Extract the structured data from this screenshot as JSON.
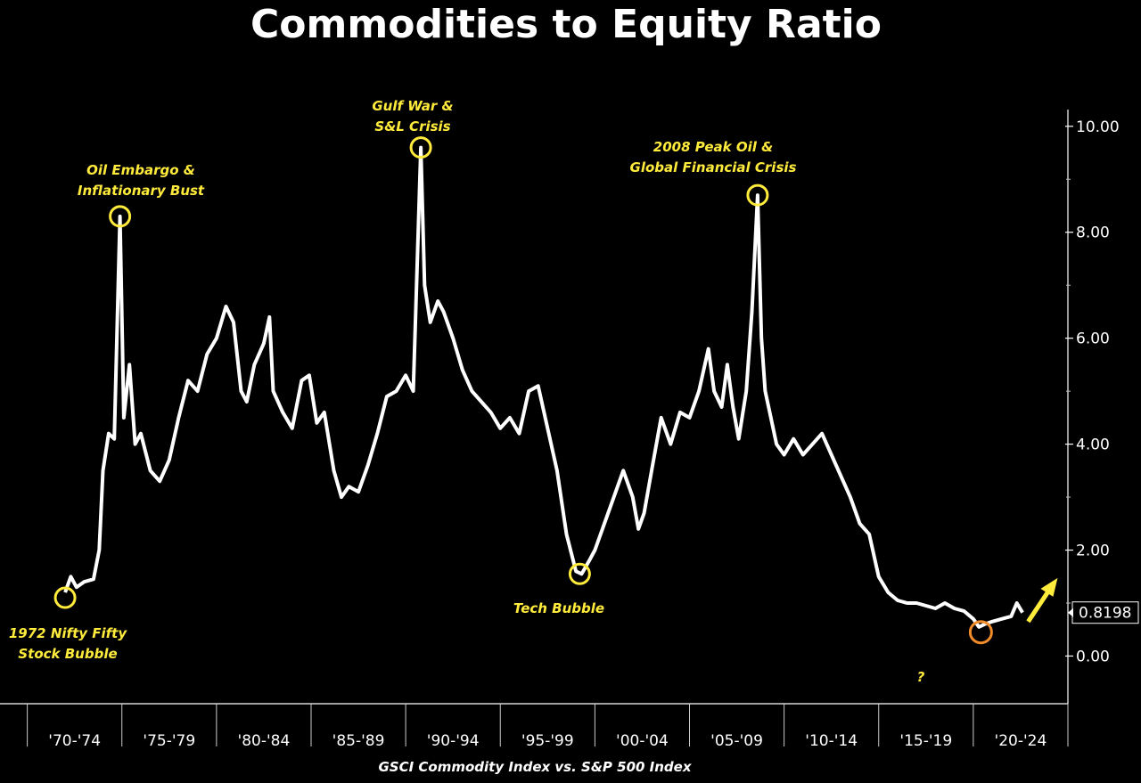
{
  "chart_data": {
    "type": "line",
    "title": "Commodities to Equity Ratio",
    "xlabel": "GSCI Commodity Index vs. S&P 500 Index",
    "ylabel": "",
    "categories": [
      "'70-'74",
      "'75-'79",
      "'80-'84",
      "'85-'89",
      "'90-'94",
      "'95-'99",
      "'00-'04",
      "'05-'09",
      "'10-'14",
      "'15-'19",
      "'20-'24"
    ],
    "yticks": [
      "0.00",
      "2.00",
      "4.00",
      "6.00",
      "8.00",
      "10.00"
    ],
    "ylim": [
      -0.9,
      10.4
    ],
    "xlim": [
      1969.5,
      2025
    ],
    "grid": false,
    "last_value_label": "0.8198",
    "accent_color": "#ffeb3b",
    "marker_colors": {
      "peak": "#ffeb3b",
      "current_low": "#f28c28"
    },
    "series": [
      {
        "values": [
          [
            1972.0,
            1.2
          ],
          [
            1972.3,
            1.5
          ],
          [
            1972.6,
            1.3
          ],
          [
            1973.0,
            1.4
          ],
          [
            1973.5,
            1.45
          ],
          [
            1973.8,
            2.0
          ],
          [
            1974.0,
            3.5
          ],
          [
            1974.3,
            4.2
          ],
          [
            1974.6,
            4.1
          ],
          [
            1974.9,
            8.3
          ],
          [
            1975.1,
            4.5
          ],
          [
            1975.4,
            5.5
          ],
          [
            1975.7,
            4.0
          ],
          [
            1976.0,
            4.2
          ],
          [
            1976.5,
            3.5
          ],
          [
            1977.0,
            3.3
          ],
          [
            1977.5,
            3.7
          ],
          [
            1978.0,
            4.5
          ],
          [
            1978.5,
            5.2
          ],
          [
            1979.0,
            5.0
          ],
          [
            1979.5,
            5.7
          ],
          [
            1980.0,
            6.0
          ],
          [
            1980.5,
            6.6
          ],
          [
            1980.9,
            6.3
          ],
          [
            1981.3,
            5.0
          ],
          [
            1981.6,
            4.8
          ],
          [
            1982.0,
            5.5
          ],
          [
            1982.5,
            5.9
          ],
          [
            1982.8,
            6.4
          ],
          [
            1983.0,
            5.0
          ],
          [
            1983.5,
            4.6
          ],
          [
            1984.0,
            4.3
          ],
          [
            1984.5,
            5.2
          ],
          [
            1984.9,
            5.3
          ],
          [
            1985.3,
            4.4
          ],
          [
            1985.7,
            4.6
          ],
          [
            1986.2,
            3.5
          ],
          [
            1986.6,
            3.0
          ],
          [
            1987.0,
            3.2
          ],
          [
            1987.5,
            3.1
          ],
          [
            1988.0,
            3.6
          ],
          [
            1988.5,
            4.2
          ],
          [
            1989.0,
            4.9
          ],
          [
            1989.5,
            5.0
          ],
          [
            1990.0,
            5.3
          ],
          [
            1990.4,
            5.0
          ],
          [
            1990.8,
            9.6
          ],
          [
            1991.0,
            7.0
          ],
          [
            1991.3,
            6.3
          ],
          [
            1991.7,
            6.7
          ],
          [
            1992.0,
            6.5
          ],
          [
            1992.5,
            6.0
          ],
          [
            1993.0,
            5.4
          ],
          [
            1993.5,
            5.0
          ],
          [
            1994.0,
            4.8
          ],
          [
            1994.5,
            4.6
          ],
          [
            1995.0,
            4.3
          ],
          [
            1995.5,
            4.5
          ],
          [
            1996.0,
            4.2
          ],
          [
            1996.5,
            5.0
          ],
          [
            1997.0,
            5.1
          ],
          [
            1997.5,
            4.3
          ],
          [
            1998.0,
            3.5
          ],
          [
            1998.5,
            2.3
          ],
          [
            1999.0,
            1.6
          ],
          [
            1999.3,
            1.55
          ],
          [
            1999.7,
            1.8
          ],
          [
            2000.0,
            2.0
          ],
          [
            2000.5,
            2.5
          ],
          [
            2001.0,
            3.0
          ],
          [
            2001.5,
            3.5
          ],
          [
            2002.0,
            3.0
          ],
          [
            2002.3,
            2.4
          ],
          [
            2002.6,
            2.7
          ],
          [
            2003.0,
            3.5
          ],
          [
            2003.5,
            4.5
          ],
          [
            2004.0,
            4.0
          ],
          [
            2004.5,
            4.6
          ],
          [
            2005.0,
            4.5
          ],
          [
            2005.5,
            5.0
          ],
          [
            2006.0,
            5.8
          ],
          [
            2006.3,
            5.0
          ],
          [
            2006.7,
            4.7
          ],
          [
            2007.0,
            5.5
          ],
          [
            2007.3,
            4.7
          ],
          [
            2007.6,
            4.1
          ],
          [
            2008.0,
            5.0
          ],
          [
            2008.3,
            6.5
          ],
          [
            2008.6,
            8.7
          ],
          [
            2008.8,
            6.0
          ],
          [
            2009.0,
            5.0
          ],
          [
            2009.3,
            4.5
          ],
          [
            2009.6,
            4.0
          ],
          [
            2010.0,
            3.8
          ],
          [
            2010.5,
            4.1
          ],
          [
            2011.0,
            3.8
          ],
          [
            2011.5,
            4.0
          ],
          [
            2012.0,
            4.2
          ],
          [
            2012.5,
            3.8
          ],
          [
            2013.0,
            3.4
          ],
          [
            2013.5,
            3.0
          ],
          [
            2014.0,
            2.5
          ],
          [
            2014.5,
            2.3
          ],
          [
            2015.0,
            1.5
          ],
          [
            2015.5,
            1.2
          ],
          [
            2016.0,
            1.05
          ],
          [
            2016.5,
            1.0
          ],
          [
            2017.0,
            1.0
          ],
          [
            2017.5,
            0.95
          ],
          [
            2018.0,
            0.9
          ],
          [
            2018.5,
            1.0
          ],
          [
            2019.0,
            0.9
          ],
          [
            2019.5,
            0.85
          ],
          [
            2020.0,
            0.7
          ],
          [
            2020.3,
            0.55
          ],
          [
            2020.6,
            0.6
          ],
          [
            2021.0,
            0.65
          ],
          [
            2021.5,
            0.7
          ],
          [
            2022.0,
            0.75
          ],
          [
            2022.3,
            1.0
          ],
          [
            2022.6,
            0.82
          ]
        ]
      }
    ],
    "annotations": [
      {
        "text": [
          "Oil Embargo &",
          "Inflationary Bust"
        ],
        "x": 1974.9,
        "y": 8.3
      },
      {
        "text": [
          "Gulf War &",
          "S&L Crisis"
        ],
        "x": 1990.8,
        "y": 9.6
      },
      {
        "text": [
          "2008 Peak Oil &",
          "Global Financial Crisis"
        ],
        "x": 2008.6,
        "y": 8.7
      },
      {
        "text": [
          "Tech Bubble"
        ],
        "x": 1999.2,
        "y": 1.55
      },
      {
        "text": [
          "1972 Nifty Fifty",
          "Stock Bubble"
        ],
        "x": 1972.0,
        "y": 1.1
      },
      {
        "text": [
          "?"
        ],
        "x": 2020.4,
        "y": 0.45
      }
    ]
  }
}
